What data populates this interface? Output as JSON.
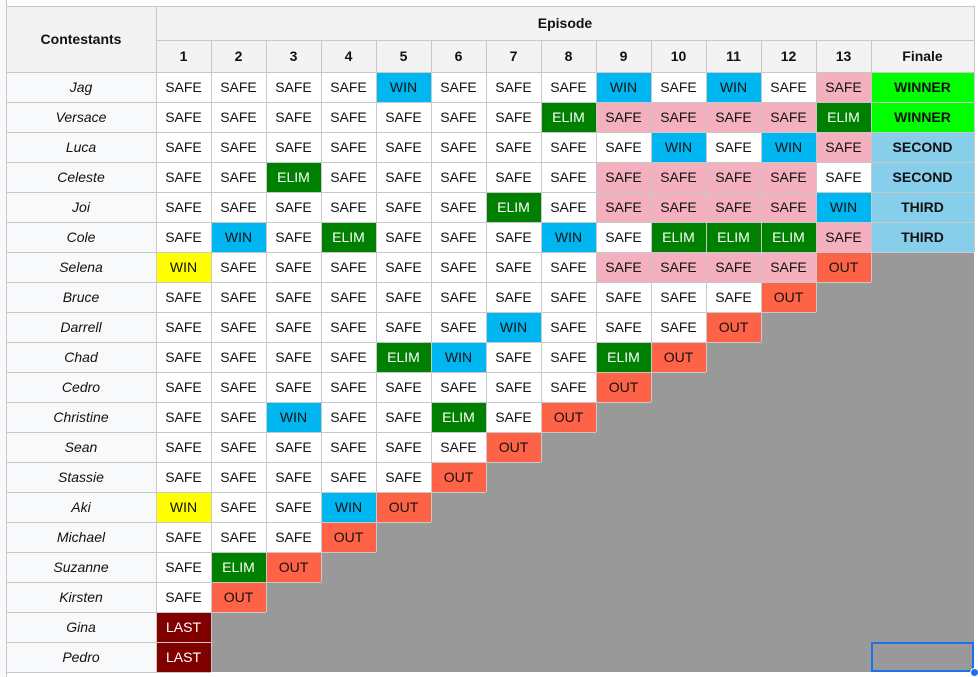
{
  "header": {
    "contestants_label": "Contestants",
    "episode_label": "Episode",
    "columns": [
      "1",
      "2",
      "3",
      "4",
      "5",
      "6",
      "7",
      "8",
      "9",
      "10",
      "11",
      "12",
      "13",
      "Finale"
    ]
  },
  "colors": {
    "SAFE": "#ffffff",
    "SAFE_PINK": "#f4b0be",
    "WIN": "#00b6f0",
    "WIN_YELLOW": "#ffff00",
    "ELIM": "#008000",
    "OUT": "#ff6347",
    "LAST": "#800000",
    "WINNER": "#00ff00",
    "PLACED": "#87ceeb",
    "ELIMINATED_GRAY": "#999999",
    "grid": "#c8c8c8",
    "selection": "#1a73e8"
  },
  "rows": [
    {
      "name": "Jag",
      "cells": [
        [
          "SAFE",
          "w"
        ],
        [
          "SAFE",
          "w"
        ],
        [
          "SAFE",
          "w"
        ],
        [
          "SAFE",
          "w"
        ],
        [
          "WIN",
          "b"
        ],
        [
          "SAFE",
          "w"
        ],
        [
          "SAFE",
          "w"
        ],
        [
          "SAFE",
          "w"
        ],
        [
          "WIN",
          "b"
        ],
        [
          "SAFE",
          "w"
        ],
        [
          "WIN",
          "b"
        ],
        [
          "SAFE",
          "w"
        ],
        [
          "SAFE",
          "p"
        ],
        [
          "WINNER",
          "lg"
        ]
      ]
    },
    {
      "name": "Versace",
      "cells": [
        [
          "SAFE",
          "w"
        ],
        [
          "SAFE",
          "w"
        ],
        [
          "SAFE",
          "w"
        ],
        [
          "SAFE",
          "w"
        ],
        [
          "SAFE",
          "w"
        ],
        [
          "SAFE",
          "w"
        ],
        [
          "SAFE",
          "w"
        ],
        [
          "ELIM",
          "g"
        ],
        [
          "SAFE",
          "p"
        ],
        [
          "SAFE",
          "p"
        ],
        [
          "SAFE",
          "p"
        ],
        [
          "SAFE",
          "p"
        ],
        [
          "ELIM",
          "g"
        ],
        [
          "WINNER",
          "lg"
        ]
      ]
    },
    {
      "name": "Luca",
      "cells": [
        [
          "SAFE",
          "w"
        ],
        [
          "SAFE",
          "w"
        ],
        [
          "SAFE",
          "w"
        ],
        [
          "SAFE",
          "w"
        ],
        [
          "SAFE",
          "w"
        ],
        [
          "SAFE",
          "w"
        ],
        [
          "SAFE",
          "w"
        ],
        [
          "SAFE",
          "w"
        ],
        [
          "SAFE",
          "w"
        ],
        [
          "WIN",
          "b"
        ],
        [
          "SAFE",
          "w"
        ],
        [
          "WIN",
          "b"
        ],
        [
          "SAFE",
          "p"
        ],
        [
          "SECOND",
          "sb"
        ]
      ]
    },
    {
      "name": "Celeste",
      "cells": [
        [
          "SAFE",
          "w"
        ],
        [
          "SAFE",
          "w"
        ],
        [
          "ELIM",
          "g"
        ],
        [
          "SAFE",
          "w"
        ],
        [
          "SAFE",
          "w"
        ],
        [
          "SAFE",
          "w"
        ],
        [
          "SAFE",
          "w"
        ],
        [
          "SAFE",
          "w"
        ],
        [
          "SAFE",
          "p"
        ],
        [
          "SAFE",
          "p"
        ],
        [
          "SAFE",
          "p"
        ],
        [
          "SAFE",
          "p"
        ],
        [
          "SAFE",
          "w"
        ],
        [
          "SECOND",
          "sb"
        ]
      ]
    },
    {
      "name": "Joi",
      "cells": [
        [
          "SAFE",
          "w"
        ],
        [
          "SAFE",
          "w"
        ],
        [
          "SAFE",
          "w"
        ],
        [
          "SAFE",
          "w"
        ],
        [
          "SAFE",
          "w"
        ],
        [
          "SAFE",
          "w"
        ],
        [
          "ELIM",
          "g"
        ],
        [
          "SAFE",
          "w"
        ],
        [
          "SAFE",
          "p"
        ],
        [
          "SAFE",
          "p"
        ],
        [
          "SAFE",
          "p"
        ],
        [
          "SAFE",
          "p"
        ],
        [
          "WIN",
          "b"
        ],
        [
          "THIRD",
          "sb"
        ]
      ]
    },
    {
      "name": "Cole",
      "cells": [
        [
          "SAFE",
          "w"
        ],
        [
          "WIN",
          "b"
        ],
        [
          "SAFE",
          "w"
        ],
        [
          "ELIM",
          "g"
        ],
        [
          "SAFE",
          "w"
        ],
        [
          "SAFE",
          "w"
        ],
        [
          "SAFE",
          "w"
        ],
        [
          "WIN",
          "b"
        ],
        [
          "SAFE",
          "w"
        ],
        [
          "ELIM",
          "g"
        ],
        [
          "ELIM",
          "g"
        ],
        [
          "ELIM",
          "g"
        ],
        [
          "SAFE",
          "p"
        ],
        [
          "THIRD",
          "sb"
        ]
      ]
    },
    {
      "name": "Selena",
      "cells": [
        [
          "WIN",
          "y"
        ],
        [
          "SAFE",
          "w"
        ],
        [
          "SAFE",
          "w"
        ],
        [
          "SAFE",
          "w"
        ],
        [
          "SAFE",
          "w"
        ],
        [
          "SAFE",
          "w"
        ],
        [
          "SAFE",
          "w"
        ],
        [
          "SAFE",
          "w"
        ],
        [
          "SAFE",
          "p"
        ],
        [
          "SAFE",
          "p"
        ],
        [
          "SAFE",
          "p"
        ],
        [
          "SAFE",
          "p"
        ],
        [
          "OUT",
          "o"
        ]
      ]
    },
    {
      "name": "Bruce",
      "cells": [
        [
          "SAFE",
          "w"
        ],
        [
          "SAFE",
          "w"
        ],
        [
          "SAFE",
          "w"
        ],
        [
          "SAFE",
          "w"
        ],
        [
          "SAFE",
          "w"
        ],
        [
          "SAFE",
          "w"
        ],
        [
          "SAFE",
          "w"
        ],
        [
          "SAFE",
          "w"
        ],
        [
          "SAFE",
          "w"
        ],
        [
          "SAFE",
          "w"
        ],
        [
          "SAFE",
          "w"
        ],
        [
          "OUT",
          "o"
        ]
      ]
    },
    {
      "name": "Darrell",
      "cells": [
        [
          "SAFE",
          "w"
        ],
        [
          "SAFE",
          "w"
        ],
        [
          "SAFE",
          "w"
        ],
        [
          "SAFE",
          "w"
        ],
        [
          "SAFE",
          "w"
        ],
        [
          "SAFE",
          "w"
        ],
        [
          "WIN",
          "b"
        ],
        [
          "SAFE",
          "w"
        ],
        [
          "SAFE",
          "w"
        ],
        [
          "SAFE",
          "w"
        ],
        [
          "OUT",
          "o"
        ]
      ]
    },
    {
      "name": "Chad",
      "cells": [
        [
          "SAFE",
          "w"
        ],
        [
          "SAFE",
          "w"
        ],
        [
          "SAFE",
          "w"
        ],
        [
          "SAFE",
          "w"
        ],
        [
          "ELIM",
          "g"
        ],
        [
          "WIN",
          "b"
        ],
        [
          "SAFE",
          "w"
        ],
        [
          "SAFE",
          "w"
        ],
        [
          "ELIM",
          "g"
        ],
        [
          "OUT",
          "o"
        ]
      ]
    },
    {
      "name": "Cedro",
      "cells": [
        [
          "SAFE",
          "w"
        ],
        [
          "SAFE",
          "w"
        ],
        [
          "SAFE",
          "w"
        ],
        [
          "SAFE",
          "w"
        ],
        [
          "SAFE",
          "w"
        ],
        [
          "SAFE",
          "w"
        ],
        [
          "SAFE",
          "w"
        ],
        [
          "SAFE",
          "w"
        ],
        [
          "OUT",
          "o"
        ]
      ]
    },
    {
      "name": "Christine",
      "cells": [
        [
          "SAFE",
          "w"
        ],
        [
          "SAFE",
          "w"
        ],
        [
          "WIN",
          "b"
        ],
        [
          "SAFE",
          "w"
        ],
        [
          "SAFE",
          "w"
        ],
        [
          "ELIM",
          "g"
        ],
        [
          "SAFE",
          "w"
        ],
        [
          "OUT",
          "o"
        ]
      ]
    },
    {
      "name": "Sean",
      "cells": [
        [
          "SAFE",
          "w"
        ],
        [
          "SAFE",
          "w"
        ],
        [
          "SAFE",
          "w"
        ],
        [
          "SAFE",
          "w"
        ],
        [
          "SAFE",
          "w"
        ],
        [
          "SAFE",
          "w"
        ],
        [
          "OUT",
          "o"
        ]
      ]
    },
    {
      "name": "Stassie",
      "cells": [
        [
          "SAFE",
          "w"
        ],
        [
          "SAFE",
          "w"
        ],
        [
          "SAFE",
          "w"
        ],
        [
          "SAFE",
          "w"
        ],
        [
          "SAFE",
          "w"
        ],
        [
          "OUT",
          "o"
        ]
      ]
    },
    {
      "name": "Aki",
      "cells": [
        [
          "WIN",
          "y"
        ],
        [
          "SAFE",
          "w"
        ],
        [
          "SAFE",
          "w"
        ],
        [
          "WIN",
          "b"
        ],
        [
          "OUT",
          "o"
        ]
      ]
    },
    {
      "name": "Michael",
      "cells": [
        [
          "SAFE",
          "w"
        ],
        [
          "SAFE",
          "w"
        ],
        [
          "SAFE",
          "w"
        ],
        [
          "OUT",
          "o"
        ]
      ]
    },
    {
      "name": "Suzanne",
      "cells": [
        [
          "SAFE",
          "w"
        ],
        [
          "ELIM",
          "g"
        ],
        [
          "OUT",
          "o"
        ]
      ]
    },
    {
      "name": "Kirsten",
      "cells": [
        [
          "SAFE",
          "w"
        ],
        [
          "OUT",
          "o"
        ]
      ]
    },
    {
      "name": "Gina",
      "cells": [
        [
          "LAST",
          "dr"
        ]
      ]
    },
    {
      "name": "Pedro",
      "cells": [
        [
          "LAST",
          "dr"
        ]
      ]
    }
  ]
}
